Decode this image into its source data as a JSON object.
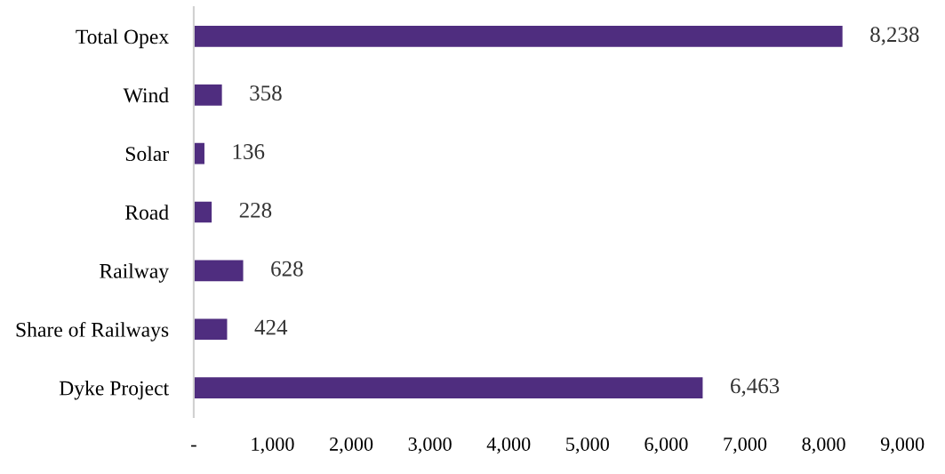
{
  "chart_data": {
    "type": "bar",
    "orientation": "horizontal",
    "categories": [
      "Total Opex",
      "Wind",
      "Solar",
      "Road",
      "Railway",
      "Share of Railways",
      "Dyke Project"
    ],
    "values": [
      8238,
      358,
      136,
      228,
      628,
      424,
      6463
    ],
    "value_labels": [
      "8,238",
      "358",
      "136",
      "228",
      "628",
      "424",
      "6,463"
    ],
    "color": "#4f2d7f",
    "xlim": [
      0,
      9000
    ],
    "xticks": [
      {
        "value": 0,
        "label": "-"
      },
      {
        "value": 1000,
        "label": "1,000"
      },
      {
        "value": 2000,
        "label": "2,000"
      },
      {
        "value": 3000,
        "label": "3,000"
      },
      {
        "value": 4000,
        "label": "4,000"
      },
      {
        "value": 5000,
        "label": "5,000"
      },
      {
        "value": 6000,
        "label": "6,000"
      },
      {
        "value": 7000,
        "label": "7,000"
      },
      {
        "value": 8000,
        "label": "8,000"
      },
      {
        "value": 9000,
        "label": "9,000"
      }
    ],
    "grid": false,
    "legend": false
  }
}
